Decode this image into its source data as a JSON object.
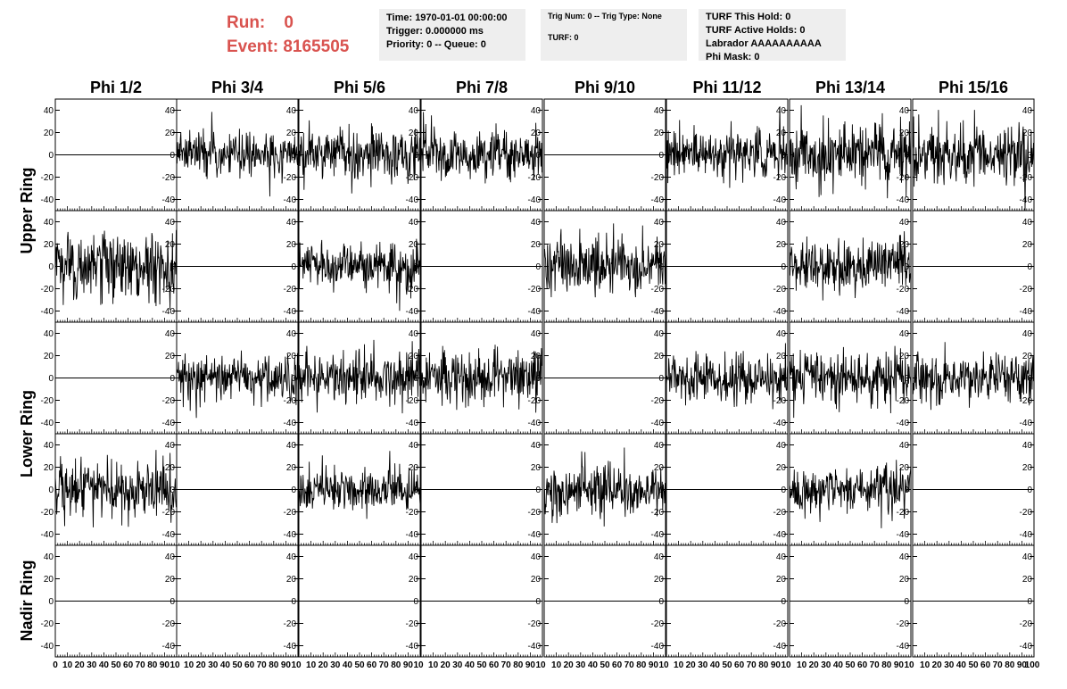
{
  "header": {
    "run_label": "Run:",
    "run_value": "0",
    "event_label": "Event:",
    "event_value": "8165505"
  },
  "info_box_1": {
    "time": "Time: 1970-01-01 00:00:00",
    "trigger": "Trigger: 0.000000 ms",
    "priority": "Priority: 0 -- Queue: 0"
  },
  "info_box_2": {
    "trig": "Trig Num: 0 -- Trig Type: None",
    "turf": "TURF: 0"
  },
  "info_box_3": {
    "this_hold": "TURF This Hold: 0",
    "active_holds": "TURF Active Holds: 0",
    "labrador": "Labrador AAAAAAAAAA",
    "phi_mask": "Phi Mask: 0"
  },
  "colors": {
    "header_red": "#d9534f",
    "box_bg": "#eeeeee",
    "trace": "#000000"
  },
  "chart_data": {
    "type": "line",
    "columns": [
      "Phi 1/2",
      "Phi 3/4",
      "Phi 5/6",
      "Phi 7/8",
      "Phi 9/10",
      "Phi 11/12",
      "Phi 13/14",
      "Phi 15/16"
    ],
    "ring_labels": [
      "Upper Ring",
      "Lower Ring",
      "Nadir Ring"
    ],
    "ylim": [
      -50,
      50
    ],
    "yticks": [
      -40,
      -20,
      0,
      20,
      40
    ],
    "xlim": [
      0,
      100
    ],
    "xticks": [
      0,
      10,
      20,
      30,
      40,
      50,
      60,
      70,
      80,
      90
    ],
    "last_xtick": "100",
    "num_samples": 260,
    "panels": [
      [
        {
          "signal": false,
          "amp": 0
        },
        {
          "signal": true,
          "amp": 10
        },
        {
          "signal": true,
          "amp": 12
        },
        {
          "signal": true,
          "amp": 11
        },
        {
          "signal": false,
          "amp": 0
        },
        {
          "signal": true,
          "amp": 11
        },
        {
          "signal": true,
          "amp": 14
        },
        {
          "signal": true,
          "amp": 14
        }
      ],
      [
        {
          "signal": true,
          "amp": 15
        },
        {
          "signal": false,
          "amp": 0
        },
        {
          "signal": true,
          "amp": 11
        },
        {
          "signal": false,
          "amp": 0
        },
        {
          "signal": true,
          "amp": 13
        },
        {
          "signal": false,
          "amp": 0
        },
        {
          "signal": true,
          "amp": 12
        },
        {
          "signal": false,
          "amp": 0
        }
      ],
      [
        {
          "signal": false,
          "amp": 0
        },
        {
          "signal": true,
          "amp": 10
        },
        {
          "signal": true,
          "amp": 12
        },
        {
          "signal": true,
          "amp": 12
        },
        {
          "signal": false,
          "amp": 0
        },
        {
          "signal": true,
          "amp": 11
        },
        {
          "signal": true,
          "amp": 12
        },
        {
          "signal": true,
          "amp": 11
        }
      ],
      [
        {
          "signal": true,
          "amp": 13
        },
        {
          "signal": false,
          "amp": 0
        },
        {
          "signal": true,
          "amp": 10
        },
        {
          "signal": false,
          "amp": 0
        },
        {
          "signal": true,
          "amp": 12
        },
        {
          "signal": false,
          "amp": 0
        },
        {
          "signal": true,
          "amp": 10
        },
        {
          "signal": false,
          "amp": 0
        }
      ],
      [
        {
          "signal": false,
          "amp": 0
        },
        {
          "signal": false,
          "amp": 0
        },
        {
          "signal": false,
          "amp": 0
        },
        {
          "signal": false,
          "amp": 0
        },
        {
          "signal": false,
          "amp": 0
        },
        {
          "signal": false,
          "amp": 0
        },
        {
          "signal": false,
          "amp": 0
        },
        {
          "signal": false,
          "amp": 0
        }
      ]
    ]
  }
}
